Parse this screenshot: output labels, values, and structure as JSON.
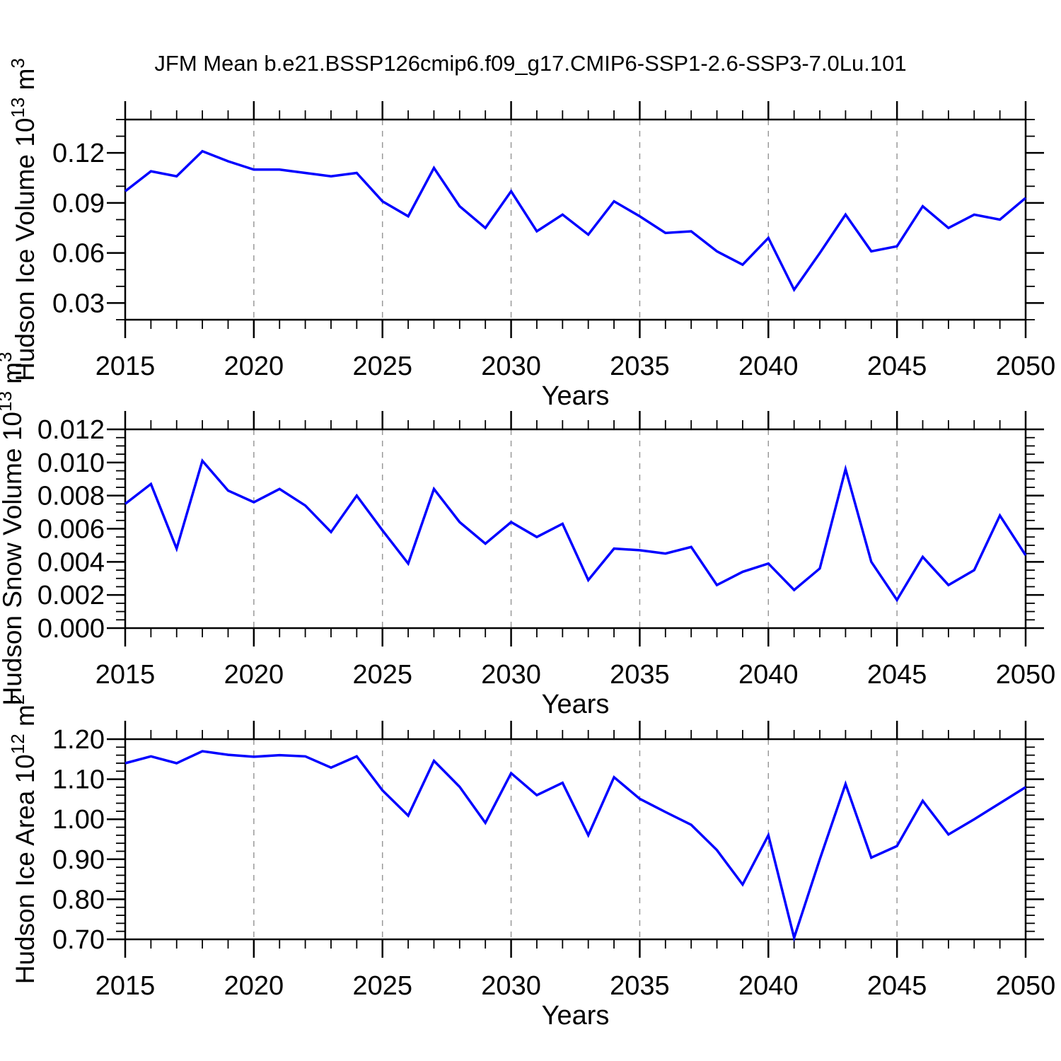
{
  "title": "JFM Mean b.e21.BSSP126cmip6.f09_g17.CMIP6-SSP1-2.6-SSP3-7.0Lu.101",
  "colors": {
    "line": "#0000FF",
    "grid": "#999999",
    "axis": "#000000",
    "background": "#FFFFFF"
  },
  "chart_data": [
    {
      "type": "line",
      "panel_id": "hudson-ice-volume",
      "xlabel": "Years",
      "ylabel": {
        "text": "Hudson Ice Volume 10",
        "exponent": "13",
        "unit": " m",
        "unit_exponent": "3",
        "full": "Hudson Ice Volume 10^13 m^3"
      },
      "x": [
        2015,
        2016,
        2017,
        2018,
        2019,
        2020,
        2021,
        2022,
        2023,
        2024,
        2025,
        2026,
        2027,
        2028,
        2029,
        2030,
        2031,
        2032,
        2033,
        2034,
        2035,
        2036,
        2037,
        2038,
        2039,
        2040,
        2041,
        2042,
        2043,
        2044,
        2045,
        2046,
        2047,
        2048,
        2049,
        2050
      ],
      "values": [
        0.097,
        0.109,
        0.106,
        0.121,
        0.115,
        0.11,
        0.11,
        0.108,
        0.106,
        0.108,
        0.091,
        0.082,
        0.111,
        0.088,
        0.075,
        0.097,
        0.073,
        0.083,
        0.071,
        0.091,
        0.082,
        0.072,
        0.073,
        0.061,
        0.053,
        0.069,
        0.038,
        0.06,
        0.083,
        0.061,
        0.064,
        0.088,
        0.075,
        0.083,
        0.08,
        0.093
      ],
      "xlim": [
        2015,
        2050
      ],
      "ylim": [
        0.02,
        0.14
      ],
      "xticks_major": [
        2015,
        2020,
        2025,
        2030,
        2035,
        2040,
        2045,
        2050
      ],
      "xtick_minor_step": 1,
      "ytick_values": [
        0.03,
        0.06,
        0.09,
        0.12
      ],
      "ytick_labels": [
        "0.03",
        "0.06",
        "0.09",
        "0.12"
      ],
      "ytick_minor_step": 0.01,
      "grid_years": [
        2020,
        2025,
        2030,
        2035,
        2040,
        2045
      ],
      "grid_style": "vertical-dashed",
      "legend": "none"
    },
    {
      "type": "line",
      "panel_id": "hudson-snow-volume",
      "xlabel": "Years",
      "ylabel": {
        "text": "Hudson Snow Volume 10",
        "exponent": "13",
        "unit": " m",
        "unit_exponent": "3",
        "full": "Hudson Snow Volume 10^13 m^3"
      },
      "x": [
        2015,
        2016,
        2017,
        2018,
        2019,
        2020,
        2021,
        2022,
        2023,
        2024,
        2025,
        2026,
        2027,
        2028,
        2029,
        2030,
        2031,
        2032,
        2033,
        2034,
        2035,
        2036,
        2037,
        2038,
        2039,
        2040,
        2041,
        2042,
        2043,
        2044,
        2045,
        2046,
        2047,
        2048,
        2049,
        2050
      ],
      "values": [
        0.0075,
        0.0087,
        0.0048,
        0.0101,
        0.0083,
        0.0076,
        0.0084,
        0.0074,
        0.0058,
        0.008,
        0.0059,
        0.0039,
        0.0084,
        0.0064,
        0.0051,
        0.0064,
        0.0055,
        0.0063,
        0.0029,
        0.0048,
        0.0047,
        0.0045,
        0.0049,
        0.0026,
        0.0034,
        0.0039,
        0.0023,
        0.0036,
        0.0096,
        0.004,
        0.0017,
        0.0043,
        0.0026,
        0.0035,
        0.0068,
        0.0044
      ],
      "xlim": [
        2015,
        2050
      ],
      "ylim": [
        0.0,
        0.012
      ],
      "xticks_major": [
        2015,
        2020,
        2025,
        2030,
        2035,
        2040,
        2045,
        2050
      ],
      "xtick_minor_step": 1,
      "ytick_values": [
        0.0,
        0.002,
        0.004,
        0.006,
        0.008,
        0.01,
        0.012
      ],
      "ytick_labels": [
        "0.000",
        "0.002",
        "0.004",
        "0.006",
        "0.008",
        "0.010",
        "0.012"
      ],
      "ytick_minor_step": 0.0005,
      "grid_years": [
        2020,
        2025,
        2030,
        2035,
        2040,
        2045
      ],
      "grid_style": "vertical-dashed",
      "legend": "none"
    },
    {
      "type": "line",
      "panel_id": "hudson-ice-area",
      "xlabel": "Years",
      "ylabel": {
        "text": "Hudson Ice Area 10",
        "exponent": "12",
        "unit": " m",
        "unit_exponent": "2",
        "full": "Hudson Ice Area 10^12 m^2"
      },
      "x": [
        2015,
        2016,
        2017,
        2018,
        2019,
        2020,
        2021,
        2022,
        2023,
        2024,
        2025,
        2026,
        2027,
        2028,
        2029,
        2030,
        2031,
        2032,
        2033,
        2034,
        2035,
        2036,
        2037,
        2038,
        2039,
        2040,
        2041,
        2042,
        2043,
        2044,
        2045,
        2046,
        2047,
        2048,
        2049,
        2050
      ],
      "values": [
        1.14,
        1.157,
        1.14,
        1.17,
        1.161,
        1.156,
        1.16,
        1.157,
        1.129,
        1.157,
        1.072,
        1.009,
        1.146,
        1.081,
        0.991,
        1.115,
        1.06,
        1.091,
        0.96,
        1.105,
        1.051,
        1.018,
        0.986,
        0.923,
        0.837,
        0.96,
        0.704,
        0.9,
        1.088,
        0.904,
        0.933,
        1.046,
        0.962,
        1.0,
        1.04,
        1.08
      ],
      "xlim": [
        2015,
        2050
      ],
      "ylim": [
        0.7,
        1.2
      ],
      "xticks_major": [
        2015,
        2020,
        2025,
        2030,
        2035,
        2040,
        2045,
        2050
      ],
      "xtick_minor_step": 1,
      "ytick_values": [
        0.7,
        0.8,
        0.9,
        1.0,
        1.1,
        1.2
      ],
      "ytick_labels": [
        "0.70",
        "0.80",
        "0.90",
        "1.00",
        "1.10",
        "1.20"
      ],
      "ytick_minor_step": 0.02,
      "grid_years": [
        2020,
        2025,
        2030,
        2035,
        2040,
        2045
      ],
      "grid_style": "vertical-dashed",
      "legend": "none"
    }
  ]
}
